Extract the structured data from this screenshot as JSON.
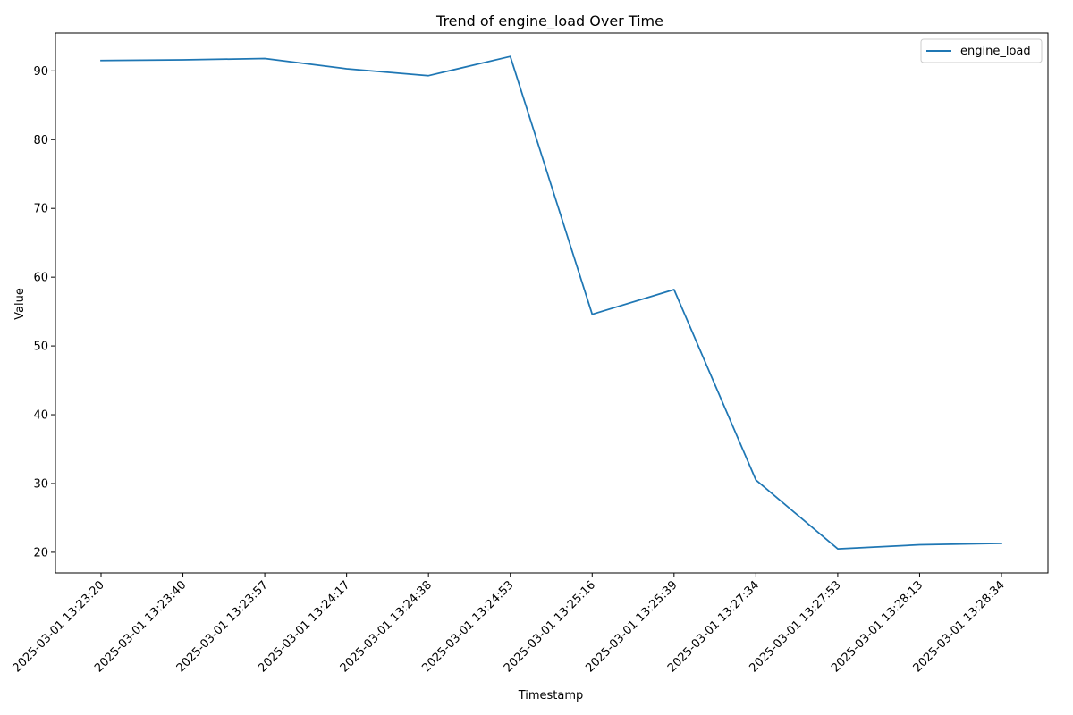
{
  "chart_data": {
    "type": "line",
    "title": "Trend of engine_load Over Time",
    "xlabel": "Timestamp",
    "ylabel": "Value",
    "categories": [
      "2025-03-01 13:23:20",
      "2025-03-01 13:23:40",
      "2025-03-01 13:23:57",
      "2025-03-01 13:24:17",
      "2025-03-01 13:24:38",
      "2025-03-01 13:24:53",
      "2025-03-01 13:25:16",
      "2025-03-01 13:25:39",
      "2025-03-01 13:27:34",
      "2025-03-01 13:27:53",
      "2025-03-01 13:28:13",
      "2025-03-01 13:28:34"
    ],
    "series": [
      {
        "name": "engine_load",
        "color": "#1f77b4",
        "values": [
          91.5,
          91.6,
          91.8,
          90.3,
          89.3,
          92.1,
          54.6,
          58.2,
          30.5,
          20.5,
          21.1,
          21.3
        ]
      }
    ],
    "yticks": [
      20,
      30,
      40,
      50,
      60,
      70,
      80,
      90
    ],
    "ylim": [
      17,
      95.5
    ],
    "grid": false,
    "legend_position": "top-right"
  }
}
